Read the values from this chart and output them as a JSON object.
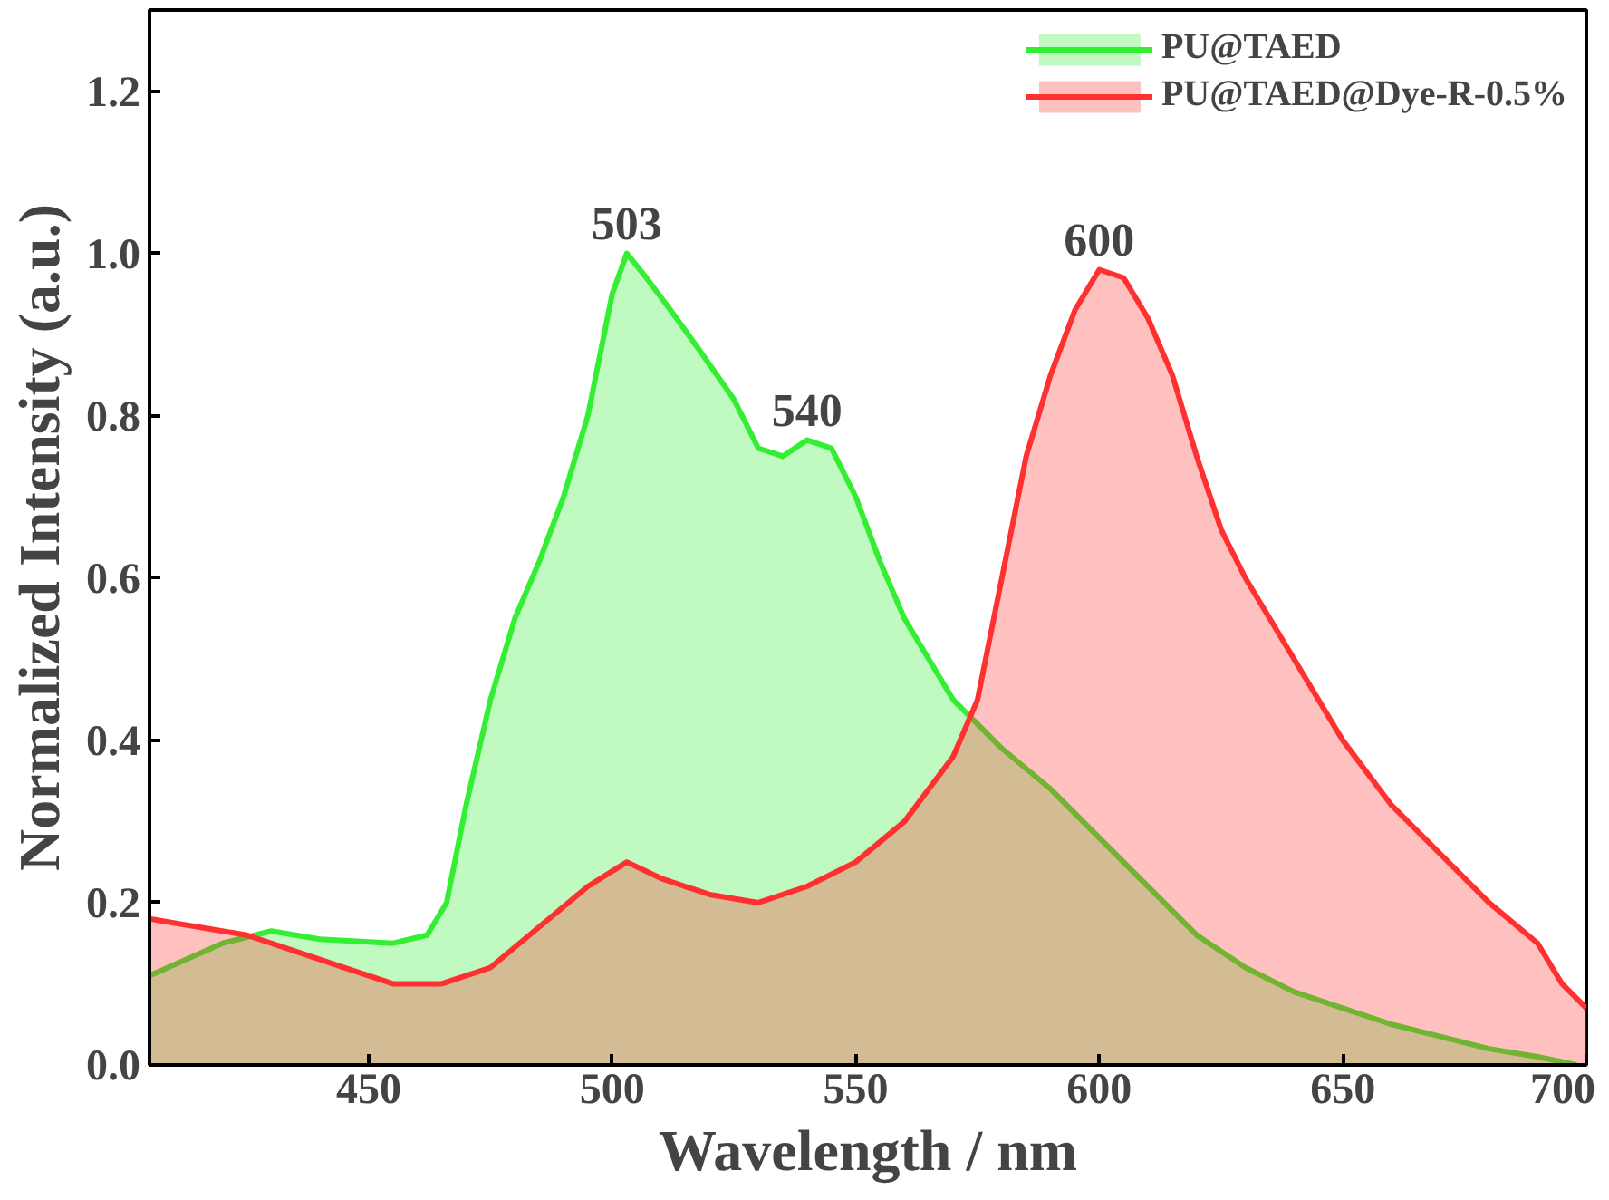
{
  "chart_data": {
    "type": "area",
    "xlabel": "Wavelength / nm",
    "ylabel": "Normalized Intensity (a.u.)",
    "xlim": [
      405,
      700
    ],
    "ylim": [
      0,
      1.3
    ],
    "xticks": [
      450,
      500,
      550,
      600,
      650,
      700
    ],
    "yticks": [
      {
        "value": 0,
        "label": "0.0"
      },
      {
        "value": 0.2,
        "label": "0.2"
      },
      {
        "value": 0.4,
        "label": "0.4"
      },
      {
        "value": 0.6,
        "label": "0.6"
      },
      {
        "value": 0.8,
        "label": "0.8"
      },
      {
        "value": 1.0,
        "label": "1.0"
      },
      {
        "value": 1.2,
        "label": "1.2"
      }
    ],
    "grid": false,
    "legend": "top right",
    "series": [
      {
        "name": "PU@TAED",
        "color": "#33ee33",
        "x": [
          405,
          420,
          430,
          440,
          455,
          462,
          466,
          470,
          475,
          480,
          485,
          490,
          495,
          500,
          503,
          507,
          512,
          518,
          525,
          530,
          535,
          540,
          545,
          550,
          555,
          560,
          565,
          570,
          575,
          580,
          590,
          600,
          610,
          620,
          630,
          640,
          650,
          660,
          670,
          680,
          690,
          698
        ],
        "values": [
          0.11,
          0.15,
          0.165,
          0.155,
          0.15,
          0.16,
          0.2,
          0.32,
          0.45,
          0.55,
          0.62,
          0.7,
          0.8,
          0.95,
          1.0,
          0.97,
          0.93,
          0.88,
          0.82,
          0.76,
          0.75,
          0.77,
          0.76,
          0.7,
          0.62,
          0.55,
          0.5,
          0.45,
          0.42,
          0.39,
          0.34,
          0.28,
          0.22,
          0.16,
          0.12,
          0.09,
          0.07,
          0.05,
          0.035,
          0.02,
          0.01,
          0.0
        ]
      },
      {
        "name": "PU@TAED@Dye-R-0.5%",
        "color": "#ff3030",
        "x": [
          405,
          415,
          425,
          435,
          445,
          455,
          465,
          475,
          485,
          495,
          503,
          510,
          520,
          530,
          540,
          550,
          560,
          565,
          570,
          575,
          580,
          585,
          590,
          595,
          600,
          605,
          610,
          615,
          620,
          625,
          630,
          640,
          650,
          660,
          670,
          680,
          690,
          695,
          700
        ],
        "values": [
          0.18,
          0.17,
          0.16,
          0.14,
          0.12,
          0.1,
          0.1,
          0.12,
          0.17,
          0.22,
          0.25,
          0.23,
          0.21,
          0.2,
          0.22,
          0.25,
          0.3,
          0.34,
          0.38,
          0.45,
          0.6,
          0.75,
          0.85,
          0.93,
          0.98,
          0.97,
          0.92,
          0.85,
          0.75,
          0.66,
          0.6,
          0.5,
          0.4,
          0.32,
          0.26,
          0.2,
          0.15,
          0.1,
          0.07
        ]
      }
    ],
    "annotations": [
      {
        "text": "503",
        "x": 503,
        "y": 1.0
      },
      {
        "text": "540",
        "x": 540,
        "y": 0.77
      },
      {
        "text": "600",
        "x": 600,
        "y": 0.98
      }
    ]
  }
}
